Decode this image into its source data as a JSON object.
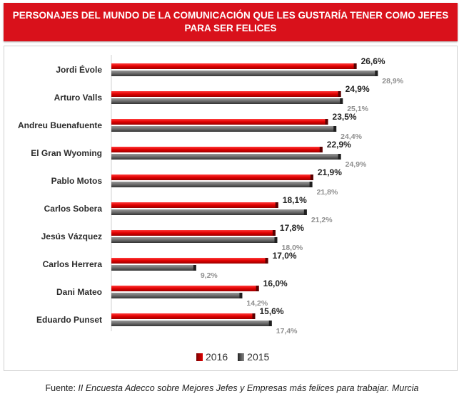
{
  "title": {
    "line1": "PERSONAJES DEL MUNDO DE LA COMUNICACIÓN QUE LES GUSTARÍA TENER COMO JEFES",
    "line2": "PARA SER FELICES"
  },
  "legend": {
    "series_2016": "2016",
    "series_2015": "2015"
  },
  "source": {
    "label": "Fuente:",
    "text": "II Encuesta Adecco sobre Mejores Jefes y Empresas más felices para trabajar. Murcia"
  },
  "colors": {
    "series_2016": "#e00000",
    "series_2015": "#6b6b6b",
    "banner": "#d9111b"
  },
  "chart_data": {
    "type": "bar",
    "orientation": "horizontal",
    "categories": [
      "Jordi Évole",
      "Arturo Valls",
      "Andreu Buenafuente",
      "El Gran Wyoming",
      "Pablo Motos",
      "Carlos Sobera",
      "Jesús Vázquez",
      "Carlos Herrera",
      "Dani Mateo",
      "Eduardo Punset"
    ],
    "series": [
      {
        "name": "2016",
        "values": [
          26.6,
          24.9,
          23.5,
          22.9,
          21.9,
          18.1,
          17.8,
          17.0,
          16.0,
          15.6
        ],
        "labels": [
          "26,6%",
          "24,9%",
          "23,5%",
          "22,9%",
          "21,9%",
          "18,1%",
          "17,8%",
          "17,0%",
          "16,0%",
          "15,6%"
        ]
      },
      {
        "name": "2015",
        "values": [
          28.9,
          25.1,
          24.4,
          24.9,
          21.8,
          21.2,
          18.0,
          9.2,
          14.2,
          17.4
        ],
        "labels": [
          "28,9%",
          "25,1%",
          "24,4%",
          "24,9%",
          "21,8%",
          "21,2%",
          "18,0%",
          "9,2%",
          "14,2%",
          "17,4%"
        ]
      }
    ],
    "xlim": [
      0,
      36
    ],
    "grid": false,
    "legend_position": "bottom"
  }
}
